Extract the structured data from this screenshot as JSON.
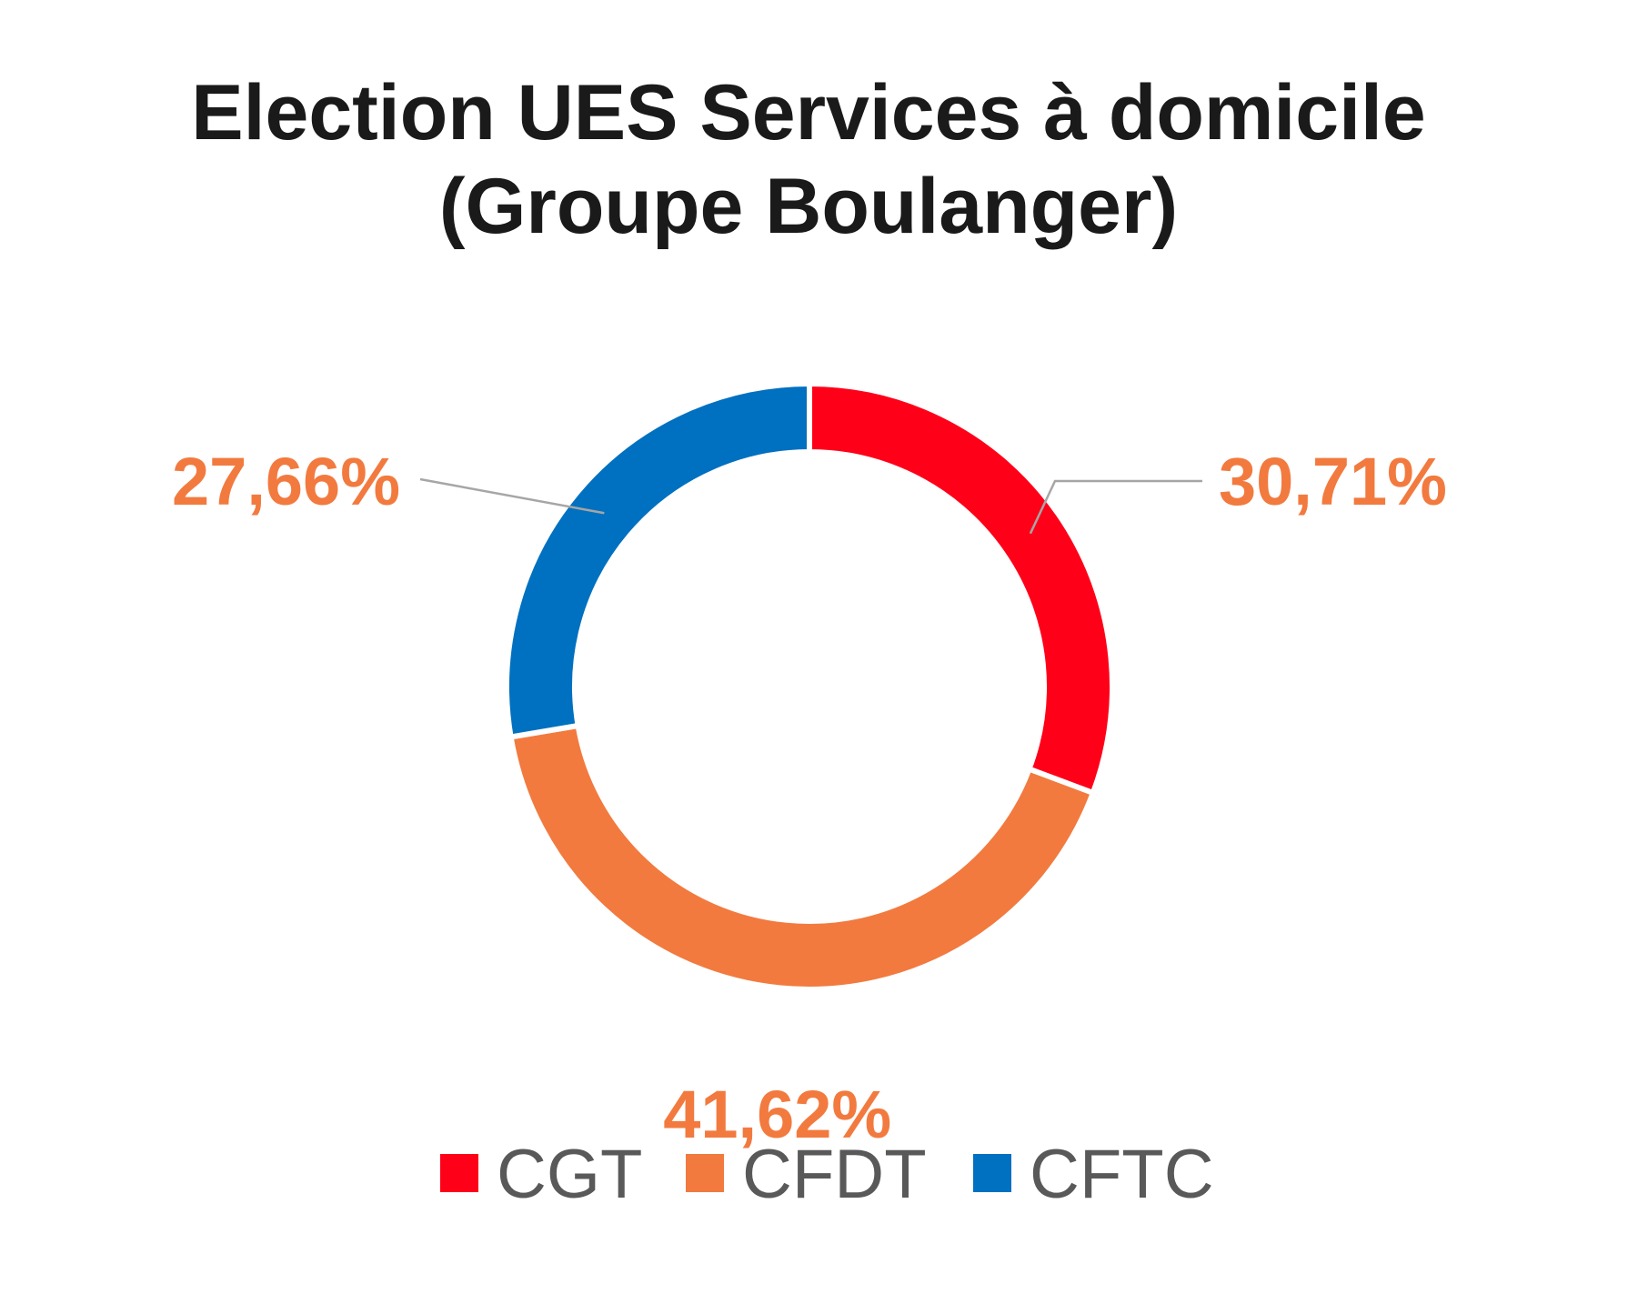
{
  "chart_data": {
    "type": "pie",
    "variant": "donut",
    "title": [
      "Election UES Services à domicile",
      "(Groupe Boulanger)"
    ],
    "categories": [
      "CGT",
      "CFDT",
      "CFTC"
    ],
    "values": [
      30.71,
      41.62,
      27.66
    ],
    "data_labels": [
      "30,71%",
      "41,62%",
      "27,66%"
    ],
    "colors": [
      "#ff0019",
      "#f27a3f",
      "#0070c0"
    ],
    "label_color": "#f27a3f",
    "start_angle": "12 o'clock, clockwise",
    "legend": {
      "position": "bottom",
      "entries": [
        "CGT",
        "CFDT",
        "CFTC"
      ]
    }
  }
}
